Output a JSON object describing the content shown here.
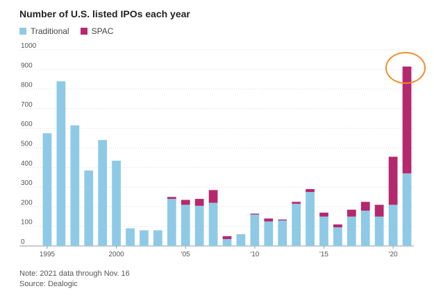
{
  "chart_data": {
    "type": "bar",
    "stacked": true,
    "title": "Number of U.S. listed IPOs each year",
    "xlabel": "",
    "ylabel": "",
    "ylim": [
      0,
      1000
    ],
    "yticks": [
      0,
      100,
      200,
      300,
      400,
      500,
      600,
      700,
      800,
      900,
      1000
    ],
    "grid": true,
    "legend": "top-left",
    "categories": [
      1995,
      1996,
      1997,
      1998,
      1999,
      2000,
      2001,
      2002,
      2003,
      2004,
      2005,
      2006,
      2007,
      2008,
      2009,
      2010,
      2011,
      2012,
      2013,
      2014,
      2015,
      2016,
      2017,
      2018,
      2019,
      2020,
      2021
    ],
    "xtick_labels": [
      {
        "year": 1995,
        "label": "1995"
      },
      {
        "year": 2000,
        "label": "2000"
      },
      {
        "year": 2005,
        "label": "'05"
      },
      {
        "year": 2010,
        "label": "'10"
      },
      {
        "year": 2015,
        "label": "'15"
      },
      {
        "year": 2020,
        "label": "'20"
      }
    ],
    "series": [
      {
        "name": "Traditional",
        "color": "#8ecae6",
        "values": [
          575,
          840,
          615,
          385,
          540,
          435,
          90,
          80,
          80,
          240,
          210,
          205,
          220,
          35,
          60,
          160,
          125,
          130,
          215,
          275,
          150,
          95,
          150,
          180,
          150,
          210,
          370
        ]
      },
      {
        "name": "SPAC",
        "color": "#b5286d",
        "values": [
          0,
          0,
          0,
          0,
          0,
          0,
          0,
          0,
          0,
          10,
          25,
          35,
          65,
          15,
          0,
          5,
          15,
          5,
          10,
          15,
          20,
          15,
          35,
          45,
          60,
          245,
          545
        ]
      }
    ],
    "annotations": [
      {
        "type": "circle",
        "target": 2021,
        "color": "#f28c28"
      }
    ]
  },
  "footer": {
    "note": "Note: 2021 data through Nov. 16",
    "source": "Source: Dealogic"
  }
}
